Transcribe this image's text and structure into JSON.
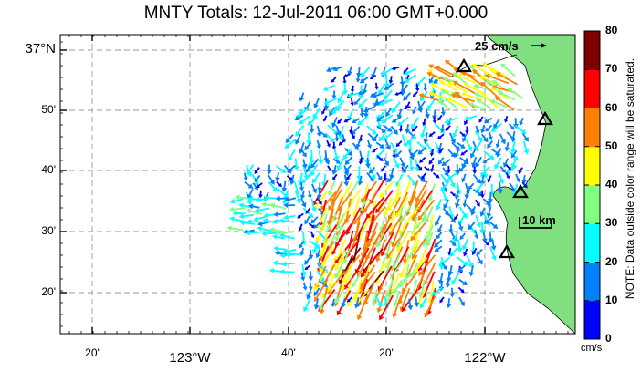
{
  "title": "MNTY Totals: 12-Jul-2011 06:00 GMT+0.000",
  "lat_ticks": [
    {
      "label": "37°N",
      "big": true
    },
    {
      "label": "50'"
    },
    {
      "label": "40'"
    },
    {
      "label": "30'"
    },
    {
      "label": "20'"
    }
  ],
  "lon_ticks": [
    {
      "label": "20'"
    },
    {
      "label": "123°W",
      "big": true
    },
    {
      "label": "40'"
    },
    {
      "label": "20'"
    },
    {
      "label": "122°W",
      "big": true
    }
  ],
  "scale_arrow_label": "25 cm/s",
  "scale_bar_label": "10 km",
  "colorbar": {
    "ticks": [
      "80",
      "70",
      "60",
      "50",
      "40",
      "30",
      "20",
      "10",
      "0"
    ],
    "unit": "cm/s",
    "note": "NOTE: Data outside color range will be saturated.",
    "colors": [
      "#0000ff",
      "#0080ff",
      "#00ffff",
      "#80ff80",
      "#ffff00",
      "#ff8000",
      "#ff0000",
      "#800000"
    ]
  },
  "colors": {
    "land": "#80e080",
    "grid": "#9a9a9a",
    "background": "#ffffff"
  }
}
